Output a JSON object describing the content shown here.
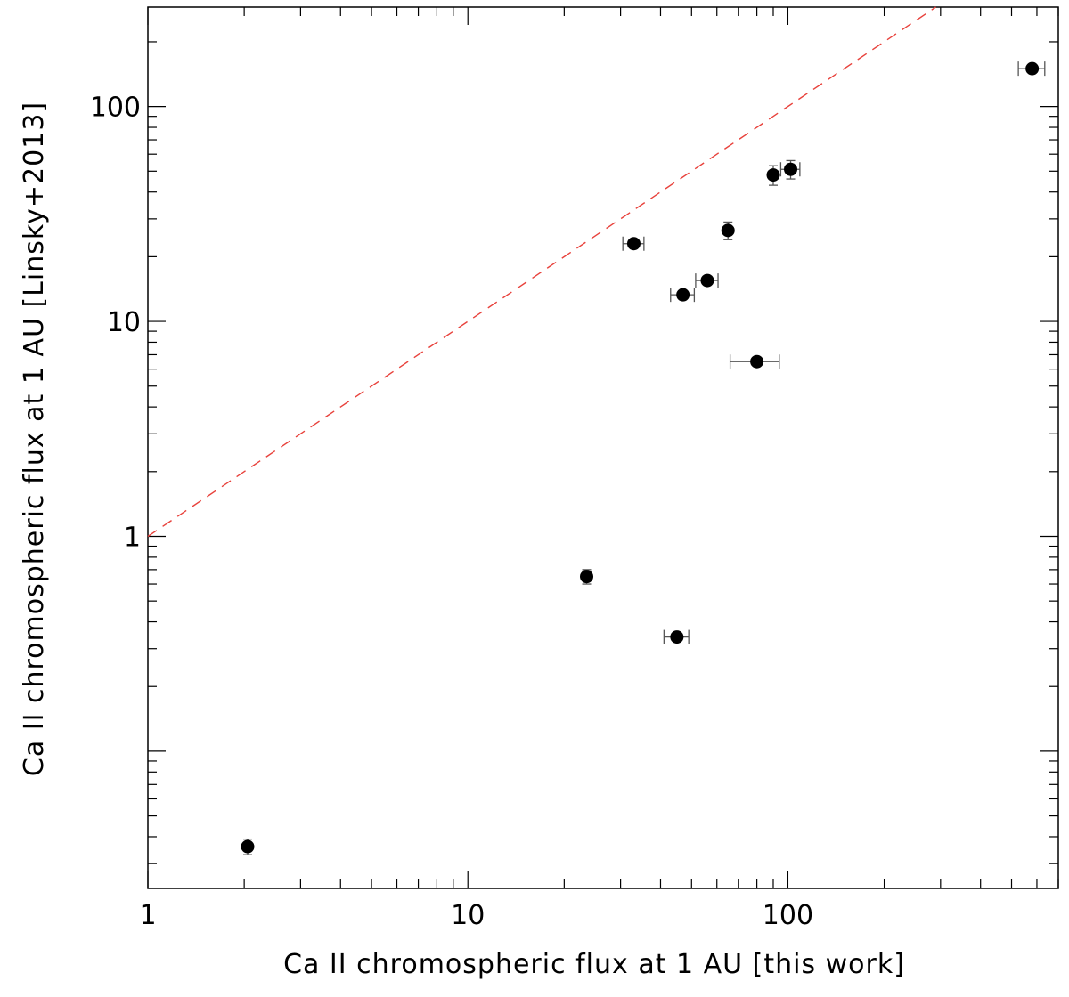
{
  "chart_data": {
    "type": "scatter",
    "title": "",
    "xlabel": "Ca II chromospheric flux at 1 AU [this work]",
    "ylabel": "Ca II chromospheric flux at 1 AU [Linsky+2013]",
    "xscale": "log",
    "yscale": "log",
    "xlim": [
      1,
      700
    ],
    "ylim": [
      0.023,
      290
    ],
    "x_tick_labels": [
      "1",
      "10",
      "100"
    ],
    "y_tick_labels": [
      "1",
      "10",
      "100"
    ],
    "grid": false,
    "legend": "none",
    "reference_line": {
      "label": "",
      "slope": 1,
      "style": "dashed",
      "color": "#e8423c"
    },
    "points": [
      {
        "x": 2.05,
        "y": 0.036,
        "xerr": 0.0,
        "yerr": 0.003
      },
      {
        "x": 23.5,
        "y": 0.65,
        "xerr": 0.0,
        "yerr": 0.05
      },
      {
        "x": 45.0,
        "y": 0.34,
        "xerr": 4.0,
        "yerr": 0.0
      },
      {
        "x": 33.0,
        "y": 23.0,
        "xerr": 2.5,
        "yerr": 0.0
      },
      {
        "x": 47.0,
        "y": 13.3,
        "xerr": 4.0,
        "yerr": 0.0
      },
      {
        "x": 56.0,
        "y": 15.5,
        "xerr": 4.5,
        "yerr": 0.0
      },
      {
        "x": 65.0,
        "y": 26.5,
        "xerr": 0.0,
        "yerr": 2.5
      },
      {
        "x": 80.0,
        "y": 6.5,
        "xerr": 14.0,
        "yerr": 0.0
      },
      {
        "x": 90.0,
        "y": 48.0,
        "xerr": 0.0,
        "yerr": 5.0
      },
      {
        "x": 102.0,
        "y": 51.0,
        "xerr": 7.0,
        "yerr": 5.0
      },
      {
        "x": 580.0,
        "y": 150.0,
        "xerr": 55.0,
        "yerr": 0.0
      }
    ],
    "colors": {
      "points": "#000000",
      "errorbars": "#555555",
      "reference": "#e8423c",
      "axes": "#000000"
    }
  }
}
